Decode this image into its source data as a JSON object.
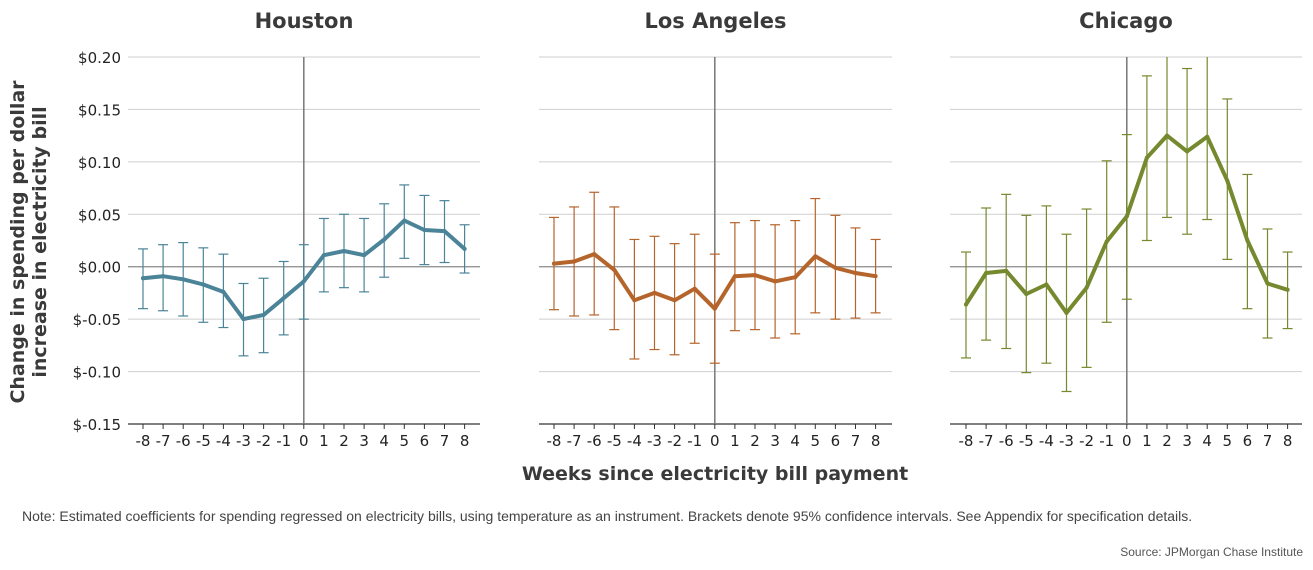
{
  "chart_data": [
    {
      "type": "line",
      "title": "Houston",
      "color": "#4b8499",
      "x": [
        -8,
        -7,
        -6,
        -5,
        -4,
        -3,
        -2,
        -1,
        0,
        1,
        2,
        3,
        4,
        5,
        6,
        7,
        8
      ],
      "values": [
        -0.011,
        -0.009,
        -0.012,
        -0.017,
        -0.024,
        -0.05,
        -0.046,
        -0.03,
        -0.014,
        0.011,
        0.015,
        0.011,
        0.026,
        0.044,
        0.035,
        0.034,
        0.017
      ],
      "ci_low": [
        -0.04,
        -0.042,
        -0.047,
        -0.053,
        -0.058,
        -0.085,
        -0.082,
        -0.065,
        -0.05,
        -0.024,
        -0.02,
        -0.024,
        -0.01,
        0.008,
        0.002,
        0.004,
        -0.006
      ],
      "ci_high": [
        0.017,
        0.021,
        0.023,
        0.018,
        0.012,
        -0.016,
        -0.011,
        0.005,
        0.021,
        0.046,
        0.05,
        0.046,
        0.06,
        0.078,
        0.068,
        0.063,
        0.04
      ]
    },
    {
      "type": "line",
      "title": "Los Angeles",
      "color": "#b5642b",
      "x": [
        -8,
        -7,
        -6,
        -5,
        -4,
        -3,
        -2,
        -1,
        0,
        1,
        2,
        3,
        4,
        5,
        6,
        7,
        8
      ],
      "values": [
        0.003,
        0.005,
        0.012,
        -0.003,
        -0.032,
        -0.025,
        -0.032,
        -0.021,
        -0.04,
        -0.009,
        -0.008,
        -0.014,
        -0.01,
        0.01,
        -0.001,
        -0.006,
        -0.009
      ],
      "ci_low": [
        -0.041,
        -0.047,
        -0.046,
        -0.06,
        -0.088,
        -0.079,
        -0.084,
        -0.073,
        -0.092,
        -0.061,
        -0.06,
        -0.068,
        -0.064,
        -0.044,
        -0.05,
        -0.049,
        -0.044
      ],
      "ci_high": [
        0.047,
        0.057,
        0.071,
        0.057,
        0.026,
        0.029,
        0.022,
        0.031,
        0.012,
        0.042,
        0.044,
        0.04,
        0.044,
        0.065,
        0.049,
        0.037,
        0.026
      ]
    },
    {
      "type": "line",
      "title": "Chicago",
      "color": "#75892e",
      "x": [
        -8,
        -7,
        -6,
        -5,
        -4,
        -3,
        -2,
        -1,
        0,
        1,
        2,
        3,
        4,
        5,
        6,
        7,
        8
      ],
      "values": [
        -0.036,
        -0.006,
        -0.004,
        -0.026,
        -0.017,
        -0.044,
        -0.02,
        0.024,
        0.048,
        0.104,
        0.125,
        0.11,
        0.124,
        0.082,
        0.025,
        -0.016,
        -0.022
      ],
      "ci_low": [
        -0.087,
        -0.07,
        -0.078,
        -0.101,
        -0.092,
        -0.119,
        -0.096,
        -0.053,
        -0.031,
        0.025,
        0.047,
        0.031,
        0.045,
        0.007,
        -0.04,
        -0.068,
        -0.059
      ],
      "ci_high": [
        0.014,
        0.056,
        0.069,
        0.049,
        0.058,
        0.031,
        0.055,
        0.101,
        0.126,
        0.182,
        0.205,
        0.189,
        0.205,
        0.16,
        0.088,
        0.036,
        0.014
      ]
    }
  ],
  "axes": {
    "ylim": [
      -0.15,
      0.2
    ],
    "y_ticks": [
      0.2,
      0.15,
      0.1,
      0.05,
      0.0,
      -0.05,
      -0.1,
      -0.15
    ],
    "y_tick_labels": [
      "$0.20",
      "$0.15",
      "$0.10",
      "$0.05",
      "$0.00",
      "$-0.05",
      "$-0.10",
      "$-0.15"
    ],
    "x_tick_labels": [
      "-8",
      "-7",
      "-6",
      "-5",
      "-4",
      "-3",
      "-2",
      "-1",
      "0",
      "1",
      "2",
      "3",
      "4",
      "5",
      "6",
      "7",
      "8"
    ],
    "ylabel_line1": "Change in spending per dollar",
    "ylabel_line2": "increase in electricity bill",
    "xlabel": "Weeks since electricity bill payment",
    "grid": true
  },
  "note": "Note: Estimated coefficients for spending regressed on electricity bills, using temperature as an instrument. Brackets denote 95% confidence intervals. See Appendix for specification details.",
  "source": "Source: JPMorgan Chase Institute"
}
